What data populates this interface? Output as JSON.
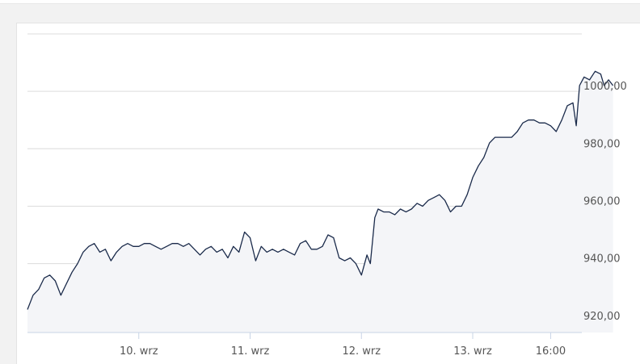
{
  "chart_data": {
    "type": "area",
    "title": "",
    "xlabel": "",
    "ylabel": "",
    "ylim": [
      916,
      1020
    ],
    "y_ticks": [
      "920,00",
      "940,00",
      "960,00",
      "980,00",
      "1000,00"
    ],
    "y_tick_values": [
      920,
      940,
      960,
      980,
      1000
    ],
    "x_tick_labels": [
      "10. wrz",
      "11. wrz",
      "12. wrz",
      "13. wrz",
      "16:00"
    ],
    "x_tick_positions": [
      1,
      2,
      3,
      4,
      4.7
    ],
    "x_range": [
      0,
      4.98
    ],
    "grid": true,
    "legend": "none",
    "colors": {
      "line": "#1a2a4a",
      "fill": "#f4f5f8",
      "grid": "#dcdcdc",
      "axis": "#c8d4e6"
    },
    "series": [
      {
        "values": [
          [
            0.0,
            924
          ],
          [
            0.05,
            929
          ],
          [
            0.1,
            931
          ],
          [
            0.15,
            935
          ],
          [
            0.2,
            936
          ],
          [
            0.25,
            934
          ],
          [
            0.3,
            929
          ],
          [
            0.35,
            933
          ],
          [
            0.4,
            937
          ],
          [
            0.45,
            940
          ],
          [
            0.5,
            944
          ],
          [
            0.55,
            946
          ],
          [
            0.6,
            947
          ],
          [
            0.65,
            944
          ],
          [
            0.7,
            945
          ],
          [
            0.75,
            941
          ],
          [
            0.8,
            944
          ],
          [
            0.85,
            946
          ],
          [
            0.9,
            947
          ],
          [
            0.95,
            946
          ],
          [
            1.0,
            946
          ],
          [
            1.05,
            947
          ],
          [
            1.1,
            947
          ],
          [
            1.15,
            946
          ],
          [
            1.2,
            945
          ],
          [
            1.25,
            946
          ],
          [
            1.3,
            947
          ],
          [
            1.35,
            947
          ],
          [
            1.4,
            946
          ],
          [
            1.45,
            947
          ],
          [
            1.5,
            945
          ],
          [
            1.55,
            943
          ],
          [
            1.6,
            945
          ],
          [
            1.65,
            946
          ],
          [
            1.7,
            944
          ],
          [
            1.75,
            945
          ],
          [
            1.8,
            942
          ],
          [
            1.85,
            946
          ],
          [
            1.9,
            944
          ],
          [
            1.95,
            951
          ],
          [
            2.0,
            949
          ],
          [
            2.05,
            941
          ],
          [
            2.1,
            946
          ],
          [
            2.15,
            944
          ],
          [
            2.2,
            945
          ],
          [
            2.25,
            944
          ],
          [
            2.3,
            945
          ],
          [
            2.35,
            944
          ],
          [
            2.4,
            943
          ],
          [
            2.45,
            947
          ],
          [
            2.5,
            948
          ],
          [
            2.55,
            945
          ],
          [
            2.6,
            945
          ],
          [
            2.65,
            946
          ],
          [
            2.7,
            950
          ],
          [
            2.75,
            949
          ],
          [
            2.8,
            942
          ],
          [
            2.85,
            941
          ],
          [
            2.9,
            942
          ],
          [
            2.95,
            940
          ],
          [
            3.0,
            936
          ],
          [
            3.05,
            943
          ],
          [
            3.08,
            940
          ],
          [
            3.12,
            956
          ],
          [
            3.15,
            959
          ],
          [
            3.2,
            958
          ],
          [
            3.25,
            958
          ],
          [
            3.3,
            957
          ],
          [
            3.35,
            959
          ],
          [
            3.4,
            958
          ],
          [
            3.45,
            959
          ],
          [
            3.5,
            961
          ],
          [
            3.55,
            960
          ],
          [
            3.6,
            962
          ],
          [
            3.65,
            963
          ],
          [
            3.7,
            964
          ],
          [
            3.75,
            962
          ],
          [
            3.8,
            958
          ],
          [
            3.85,
            960
          ],
          [
            3.9,
            960
          ],
          [
            3.95,
            964
          ],
          [
            4.0,
            970
          ],
          [
            4.05,
            974
          ],
          [
            4.1,
            977
          ],
          [
            4.15,
            982
          ],
          [
            4.2,
            984
          ],
          [
            4.25,
            984
          ],
          [
            4.3,
            984
          ],
          [
            4.35,
            984
          ],
          [
            4.4,
            986
          ],
          [
            4.45,
            989
          ],
          [
            4.5,
            990
          ],
          [
            4.55,
            990
          ],
          [
            4.6,
            989
          ],
          [
            4.65,
            989
          ],
          [
            4.7,
            988
          ],
          [
            4.75,
            986
          ],
          [
            4.8,
            990
          ],
          [
            4.85,
            995
          ],
          [
            4.9,
            996
          ],
          [
            4.93,
            988
          ],
          [
            4.96,
            1002
          ],
          [
            5.0,
            1005
          ],
          [
            5.05,
            1004
          ],
          [
            5.1,
            1007
          ],
          [
            5.15,
            1006
          ],
          [
            5.18,
            1002
          ],
          [
            5.22,
            1004
          ],
          [
            5.26,
            1002
          ]
        ]
      }
    ]
  }
}
